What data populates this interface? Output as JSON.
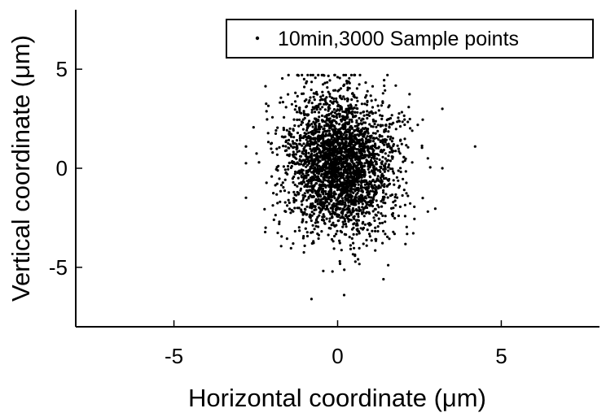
{
  "chart_data": {
    "type": "scatter",
    "xlabel": "Horizontal coordinate (μm)",
    "ylabel": "Vertical coordinate (μm)",
    "xlim": [
      -8,
      8
    ],
    "ylim": [
      -8,
      8
    ],
    "xticks": [
      -5,
      0,
      5
    ],
    "yticks": [
      -5,
      0,
      5
    ],
    "xtick_labels": [
      "-5",
      "0",
      "5"
    ],
    "ytick_labels": [
      "-5",
      "0",
      "5"
    ],
    "grid": false,
    "legend_position": "top-right",
    "color": "#000000",
    "series": [
      {
        "name": "10min,3000 Sample points",
        "marker": "dot",
        "count": 3000,
        "x_center": 0.1,
        "y_center": 0.2,
        "x_std": 0.85,
        "y_std": 1.75,
        "x_range": [
          -2.8,
          4.2
        ],
        "y_range": [
          -6.6,
          4.7
        ],
        "outliers": [
          {
            "x": -2.8,
            "y": 1.1
          },
          {
            "x": 4.2,
            "y": 1.1
          },
          {
            "x": -1.5,
            "y": 4.7
          },
          {
            "x": 3.2,
            "y": 3.0
          },
          {
            "x": 0.0,
            "y": 4.6
          },
          {
            "x": -0.8,
            "y": -6.6
          },
          {
            "x": 1.4,
            "y": -5.6
          },
          {
            "x": 0.2,
            "y": -6.4
          },
          {
            "x": -2.2,
            "y": -3.0
          },
          {
            "x": 3.2,
            "y": 0.0
          },
          {
            "x": -2.4,
            "y": 0.3
          },
          {
            "x": 2.6,
            "y": -1.5
          }
        ]
      }
    ]
  }
}
